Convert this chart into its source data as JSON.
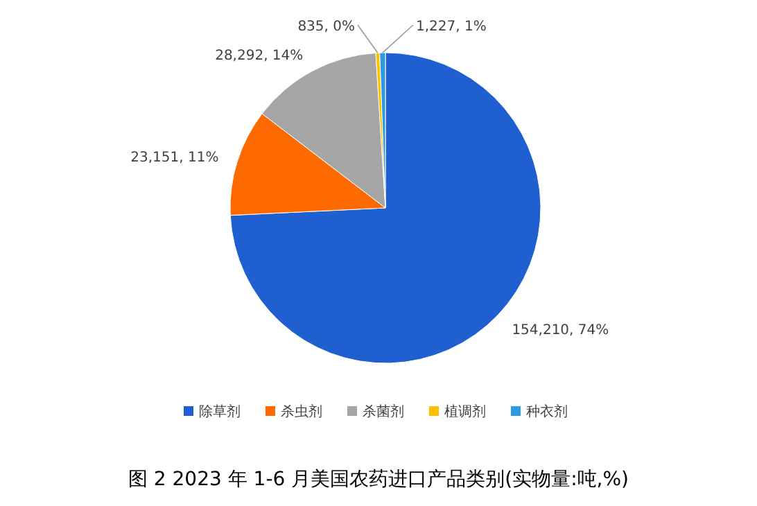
{
  "chart_data": {
    "type": "pie",
    "title": "图 2 2023 年 1-6 月美国农药进口产品类别(实物量:吨,%)",
    "categories": [
      "除草剂",
      "杀虫剂",
      "杀菌剂",
      "植调剂",
      "种衣剂"
    ],
    "values": [
      154210,
      23151,
      28292,
      835,
      1227
    ],
    "colors": [
      "#1f5fcf",
      "#ff6a00",
      "#a6a6a6",
      "#ffc000",
      "#2e9be0"
    ],
    "value_labels": [
      "154,210, 74%",
      "23,151, 11%",
      "28,292, 14%",
      "835, 0%",
      "1,227, 1%"
    ],
    "legend": "bottom"
  }
}
